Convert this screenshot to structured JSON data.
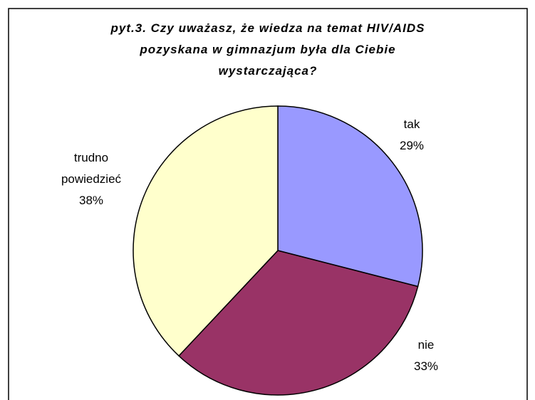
{
  "chart_data": {
    "type": "pie",
    "title": [
      "pyt.3. Czy uważasz, że wiedza na temat HIV/AIDS",
      "pozyskana w gimnazjum była dla Ciebie",
      "wystarczająca?"
    ],
    "categories": [
      "tak",
      "nie",
      "trudno powiedzieć"
    ],
    "values": [
      29,
      33,
      38
    ],
    "value_labels": [
      "29%",
      "33%",
      "38%"
    ],
    "colors": [
      "#9999ff",
      "#993366",
      "#ffffcc"
    ]
  }
}
